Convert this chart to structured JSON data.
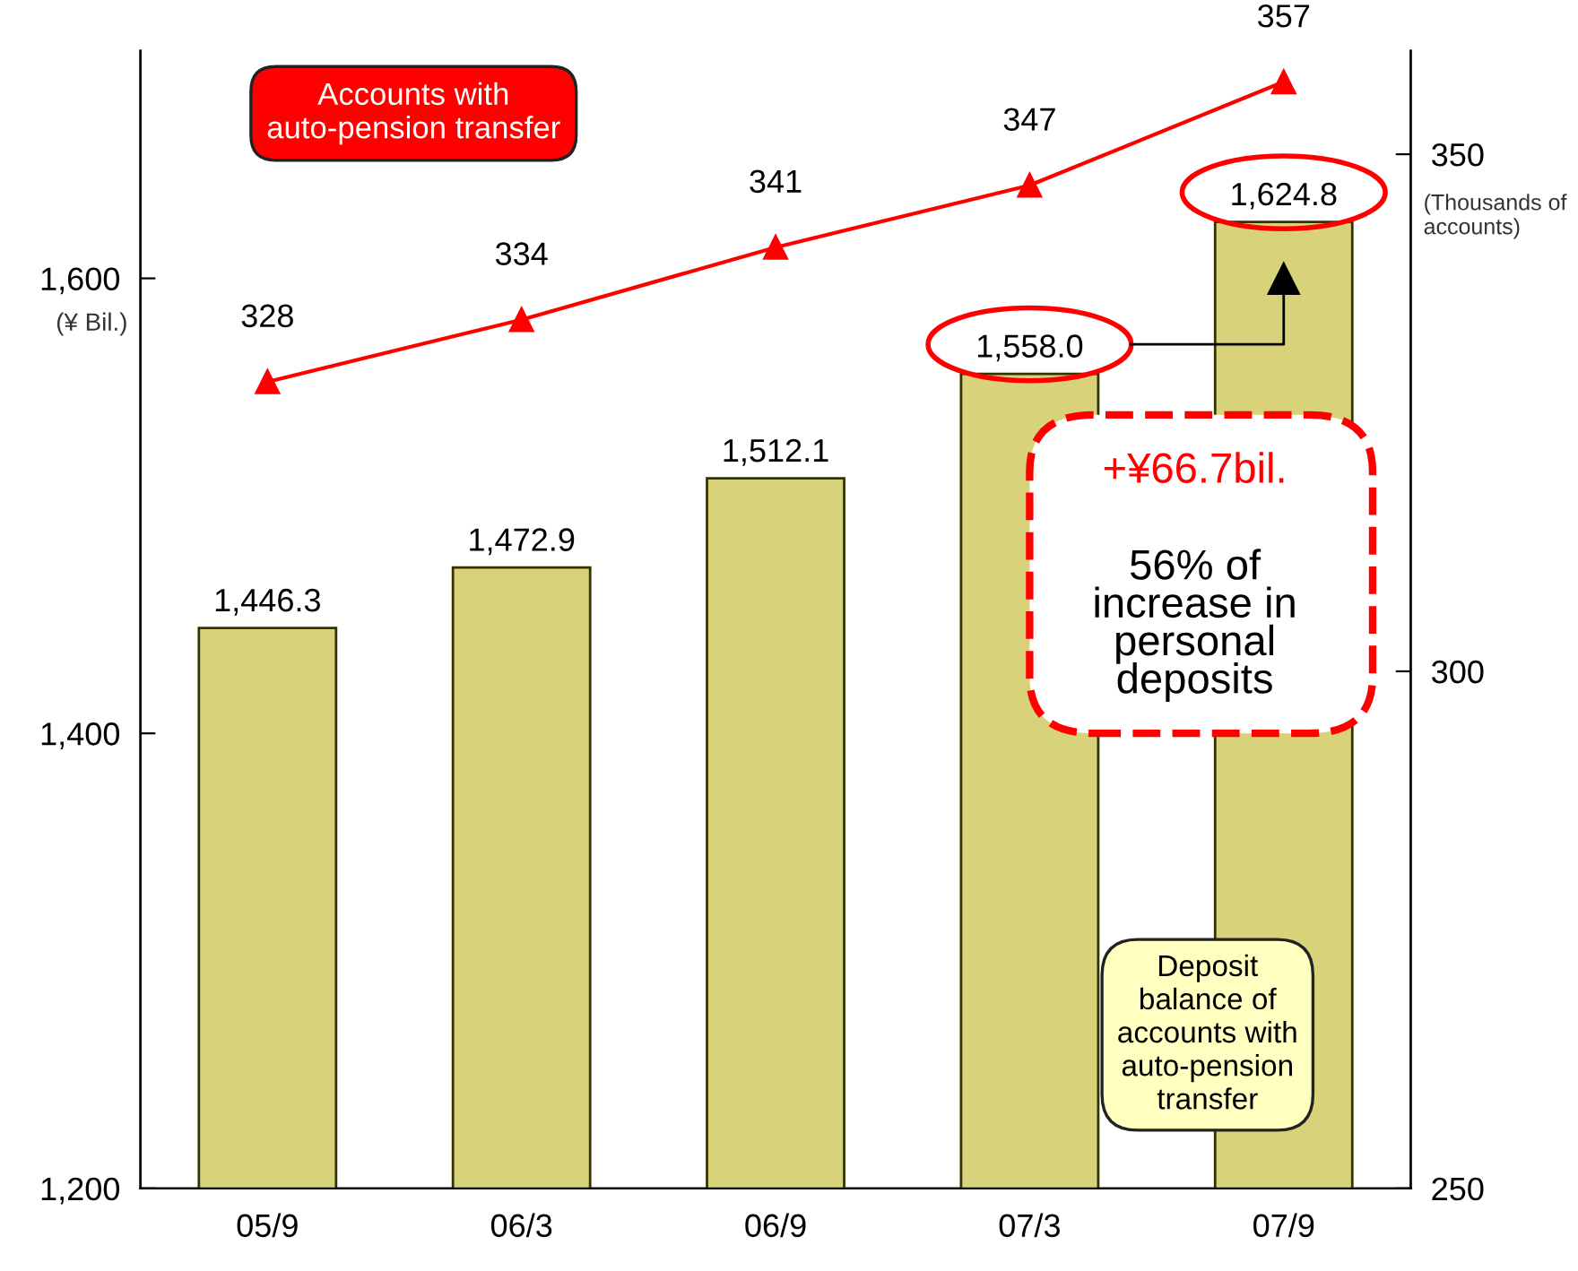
{
  "chart_data": {
    "type": "bar",
    "categories": [
      "05/9",
      "06/3",
      "06/9",
      "07/3",
      "07/9"
    ],
    "series": [
      {
        "name": "Deposit\nbalance of\naccounts with\nauto-pension\ntransfer",
        "color": "#d8d27a",
        "values": [
          1446.3,
          1472.9,
          1512.1,
          1558.0,
          1624.8
        ],
        "value_labels": [
          "1,446.3",
          "1,472.9",
          "1,512.1",
          "1,558.0",
          "1,624.8"
        ]
      },
      {
        "type": "line",
        "axis": "y2",
        "name": "Accounts with\nauto-pension transfer",
        "color": "#ff0000",
        "values": [
          328,
          334,
          341,
          347,
          357
        ],
        "value_labels": [
          "328",
          "334",
          "341",
          "347",
          "357"
        ]
      }
    ],
    "ylabel": "(¥ Bil.)",
    "y2label": "(Thousands of\naccounts)",
    "ylim": [
      1200,
      1700
    ],
    "yticks": [
      {
        "value": 1200,
        "label": "1,200"
      },
      {
        "value": 1400,
        "label": "1,400"
      },
      {
        "value": 1600,
        "label": "1,600"
      }
    ],
    "y2lim": [
      250,
      360
    ],
    "y2ticks": [
      250,
      300,
      350
    ],
    "marker": "triangle",
    "grid": false,
    "legend": false,
    "annotations": [
      "+¥66.7bil.",
      "56% of\nincrease in\npersonal\ndeposits"
    ]
  }
}
